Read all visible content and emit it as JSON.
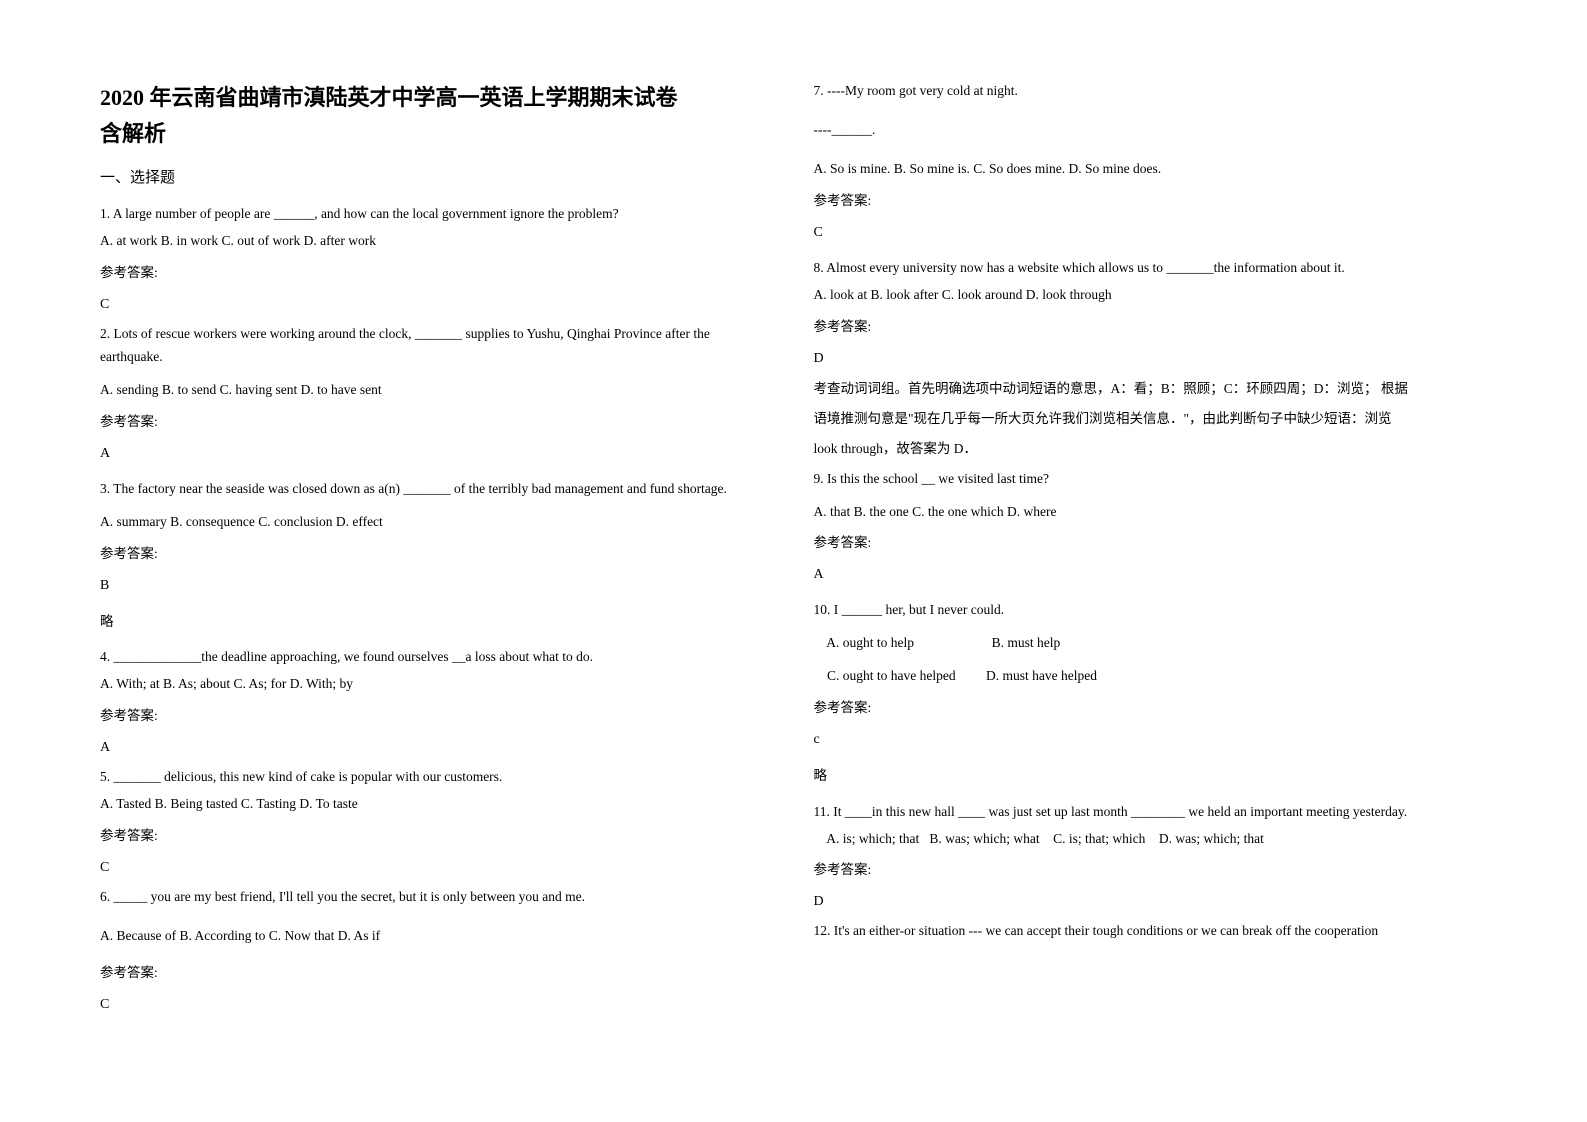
{
  "header": {
    "title": "2020 年云南省曲靖市滇陆英才中学高一英语上学期期末试卷",
    "subtitle": "含解析",
    "section": "一、选择题"
  },
  "q1": {
    "text": "1. A large number of people are ______, and how can the local government ignore the problem?",
    "opts": "A. at work            B. in work    C. out of work     D. after work",
    "label": "参考答案:",
    "ans": "C"
  },
  "q2": {
    "text": "2. Lots of rescue workers were working around the clock, _______ supplies to Yushu, Qinghai Province after the earthquake.",
    "opts": "A. sending       B. to send       C. having sent       D. to have sent",
    "label": "参考答案:",
    "ans": "A"
  },
  "q3": {
    "text": "3. The factory near the seaside was closed down as a(n) _______ of the terribly bad management and fund shortage.",
    "opts": "A. summary    B. consequence    C. conclusion    D. effect",
    "label": "参考答案:",
    "ans": "B",
    "explain": "略"
  },
  "q4": {
    "text": "4. _____________the deadline approaching, we found ourselves __a loss about what to do.",
    "opts": "A. With; at       B. As; about        C. As; for         D. With; by",
    "label": "参考答案:",
    "ans": "A"
  },
  "q5": {
    "text": "5. _______ delicious, this new kind of cake is popular with our customers.",
    "opts": "A. Tasted     B. Being tasted     C. Tasting    D. To taste",
    "label": "参考答案:",
    "ans": "C"
  },
  "q6": {
    "text": "6. _____ you are my best friend, I'll tell you the secret, but it is only between you and me.",
    "opts": "A. Because of            B. According to       C. Now that           D. As if",
    "label": "参考答案:",
    "ans": "C"
  },
  "q7": {
    "text1": "7. ----My room got very cold at night.",
    "text2": "----______.",
    "opts": "A. So is mine.     B. So mine is.      C. So does mine.    D. So mine does.",
    "label": "参考答案:",
    "ans": "C"
  },
  "q8": {
    "text": "8. Almost every university now has a website which allows us to _______the information about it.",
    "opts": "A. look at   B. look after   C. look around   D. look through",
    "label": "参考答案:",
    "ans": "D",
    "explain1": "考查动词词组。首先明确选项中动词短语的意思，A：看；B：照顾；C：环顾四周；D：浏览；  根据",
    "explain2": "语境推测句意是\"现在几乎每一所大页允许我们浏览相关信息．\"，由此判断句子中缺少短语：浏览",
    "explain3": "look through，故答案为 D．"
  },
  "q9": {
    "text": "9. Is this the school __ we visited last time?",
    "opts": "A. that      B. the one      C. the one which    D. where",
    "label": "参考答案:",
    "ans": "A"
  },
  "q10": {
    "text": "10. I ______ her, but I never could.",
    "opts1": "    A. ought to help                       B. must help",
    "opts2": "    C. ought to have helped         D. must have helped",
    "label": "参考答案:",
    "ans": "c",
    "explain": "略"
  },
  "q11": {
    "text": "11. It ____in this new hall ____ was just set up last month ________ we held an important meeting yesterday.",
    "opts": "    A. is; which; that   B. was; which; what    C. is; that; which    D. was; which; that",
    "label": "参考答案:",
    "ans": "D"
  },
  "q12": {
    "text": "12. It's an either-or situation --- we can accept their tough conditions or we can break off the cooperation"
  }
}
